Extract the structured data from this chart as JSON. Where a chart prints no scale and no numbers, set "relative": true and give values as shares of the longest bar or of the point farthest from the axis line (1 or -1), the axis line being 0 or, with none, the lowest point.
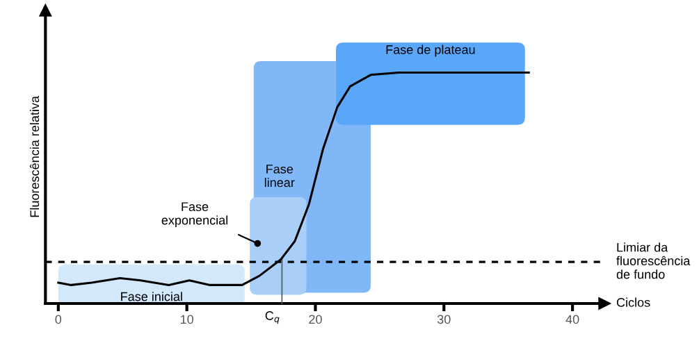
{
  "chart_data": {
    "type": "line",
    "relative": true,
    "xlabel": "Ciclos",
    "ylabel": "Fluorescência relativa",
    "x": [
      0,
      1,
      2.6,
      4.8,
      6.4,
      8.6,
      10.2,
      11.8,
      14.3,
      15.65,
      17.3,
      18.4,
      19.5,
      20.6,
      21.7,
      22.7,
      24.3,
      26.5,
      30.9,
      36.6
    ],
    "series": [
      {
        "color": "#000000",
        "values": [
          0.09,
          0.08,
          0.09,
          0.11,
          0.1,
          0.08,
          0.1,
          0.08,
          0.08,
          0.12,
          0.19,
          0.27,
          0.43,
          0.67,
          0.85,
          0.94,
          0.99,
          1.0,
          1.0,
          1.0
        ]
      }
    ],
    "xlim": [
      -1,
      42.5
    ],
    "xticks": [
      0,
      10,
      20,
      30,
      40
    ],
    "ref_lines": [
      {
        "axis": "y",
        "value": 0.18,
        "label": "Limiar da\nfluorescência\nde fundo",
        "line_style": "dashed",
        "color": "#000000"
      },
      {
        "axis": "x",
        "value": 17.4,
        "label": "C$_{q}$",
        "color": "#555555"
      }
    ],
    "bands": [
      {
        "axis": "x",
        "from": 0,
        "to": 14.5,
        "label": "Fase inicial",
        "color": "#d4e8fc"
      },
      {
        "axis": "x",
        "from": 15.2,
        "to": 24.3,
        "label": "Fase\nlinear",
        "color": "#80b7f6"
      },
      {
        "axis": "x",
        "from": 14.9,
        "to": 19.3,
        "label": null,
        "color": "#a9cff9"
      },
      {
        "axis": "x",
        "from": 21.6,
        "to": 36.3,
        "label": "Fase de plateau",
        "color": "#5aa6f8"
      }
    ],
    "annotations": [
      {
        "text": "Fase\nexponencial",
        "x": 15.5,
        "y": 0.26
      }
    ],
    "line_style": "solid",
    "marker": "none",
    "grid": false,
    "legend": false
  }
}
